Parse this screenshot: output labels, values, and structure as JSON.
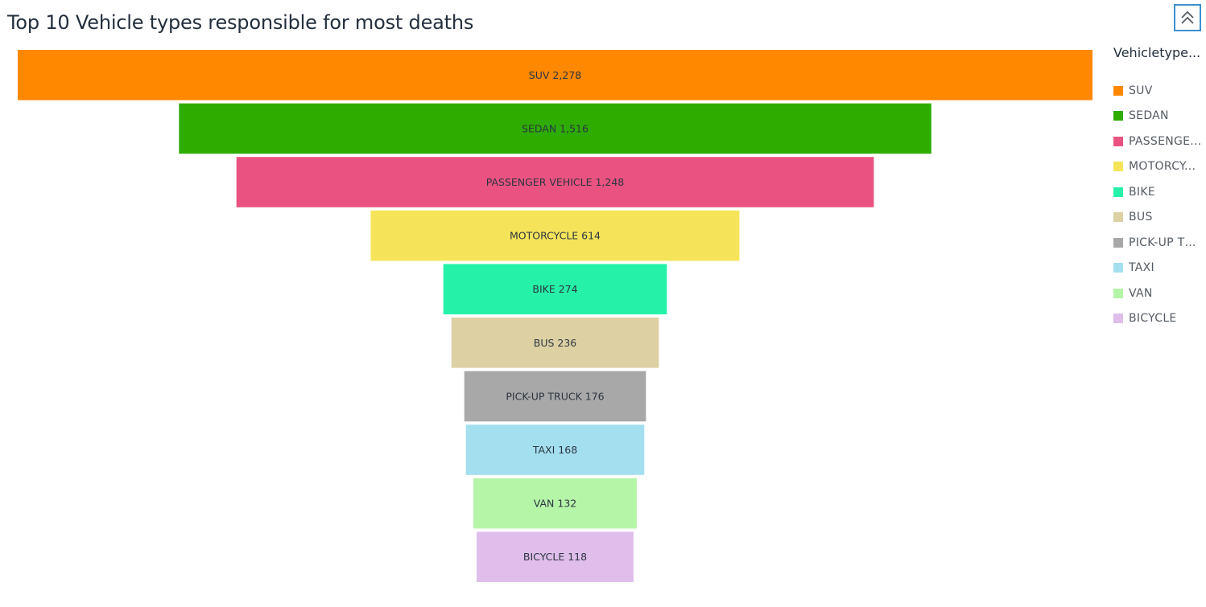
{
  "title": "Top 10 Vehicle types responsible for most deaths",
  "legend": {
    "title": "Vehicletype...",
    "items": [
      {
        "label": "SUV",
        "color": "#ff8800"
      },
      {
        "label": "SEDAN",
        "color": "#2ead00"
      },
      {
        "label": "PASSENGE...",
        "color": "#ea5381"
      },
      {
        "label": "MOTORCY...",
        "color": "#f5e45a"
      },
      {
        "label": "BIKE",
        "color": "#25f2a8"
      },
      {
        "label": "BUS",
        "color": "#ddd1a4"
      },
      {
        "label": "PICK-UP TR...",
        "color": "#a8a8a8"
      },
      {
        "label": "TAXI",
        "color": "#a4dff0"
      },
      {
        "label": "VAN",
        "color": "#b5f5a8"
      },
      {
        "label": "BICYCLE",
        "color": "#dfbeeb"
      }
    ]
  },
  "controls": {
    "collapse_icon": "double-chevron-up-icon"
  },
  "chart_data": {
    "type": "funnel",
    "categories": [
      "SUV",
      "SEDAN",
      "PASSENGER VEHICLE",
      "MOTORCYCLE",
      "BIKE",
      "BUS",
      "PICK-UP TRUCK",
      "TAXI",
      "VAN",
      "BICYCLE"
    ],
    "values": [
      2278,
      1516,
      1248,
      614,
      274,
      236,
      176,
      168,
      132,
      118
    ],
    "value_labels": [
      "2,278",
      "1,516",
      "1,248",
      "614",
      "274",
      "236",
      "176",
      "168",
      "132",
      "118"
    ],
    "colors": [
      "#ff8800",
      "#2ead00",
      "#ea5381",
      "#f5e45a",
      "#25f2a8",
      "#ddd1a4",
      "#a8a8a8",
      "#a4dff0",
      "#b5f5a8",
      "#dfbeeb"
    ],
    "relative_widths": [
      1.0,
      0.7,
      0.593,
      0.343,
      0.208,
      0.193,
      0.169,
      0.166,
      0.152,
      0.146
    ],
    "legend_position": "right"
  }
}
